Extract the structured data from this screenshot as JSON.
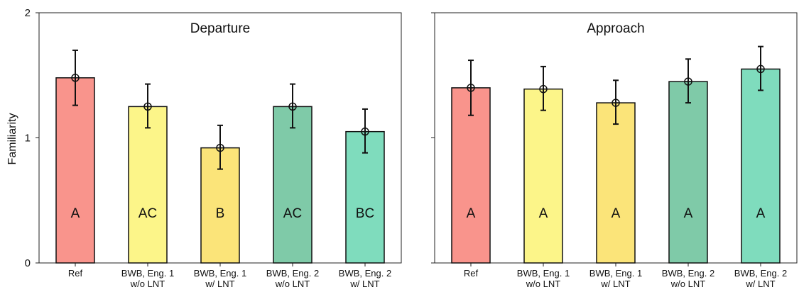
{
  "chart_data": [
    {
      "type": "bar",
      "title": "Departure",
      "ylabel": "Familiarity",
      "ylim": [
        0,
        2
      ],
      "yticks": [
        "0",
        "1",
        "2"
      ],
      "categories": [
        "Ref",
        "BWB, Eng. 1\nw/o LNT",
        "BWB, Eng. 1\nw/ LNT",
        "BWB, Eng. 2\nw/o LNT",
        "BWB, Eng. 2\nw/ LNT"
      ],
      "values": [
        1.48,
        1.25,
        0.92,
        1.25,
        1.05
      ],
      "error_low": [
        1.26,
        1.08,
        0.75,
        1.08,
        0.88
      ],
      "error_high": [
        1.7,
        1.43,
        1.1,
        1.43,
        1.23
      ],
      "group_labels": [
        "A",
        "AC",
        "B",
        "AC",
        "BC"
      ],
      "colors": [
        "#f9948c",
        "#fcf589",
        "#fbe479",
        "#7fcaa8",
        "#7fdcbd"
      ]
    },
    {
      "type": "bar",
      "title": "Approach",
      "ylim": [
        0,
        2
      ],
      "categories": [
        "Ref",
        "BWB, Eng. 1\nw/o LNT",
        "BWB, Eng. 1\nw/ LNT",
        "BWB, Eng. 2\nw/o LNT",
        "BWB, Eng. 2\nw/ LNT"
      ],
      "values": [
        1.4,
        1.39,
        1.28,
        1.45,
        1.55
      ],
      "error_low": [
        1.18,
        1.22,
        1.11,
        1.28,
        1.38
      ],
      "error_high": [
        1.62,
        1.57,
        1.46,
        1.63,
        1.73
      ],
      "group_labels": [
        "A",
        "A",
        "A",
        "A",
        "A"
      ],
      "colors": [
        "#f9948c",
        "#fcf589",
        "#fbe479",
        "#7fcaa8",
        "#7fdcbd"
      ]
    }
  ]
}
